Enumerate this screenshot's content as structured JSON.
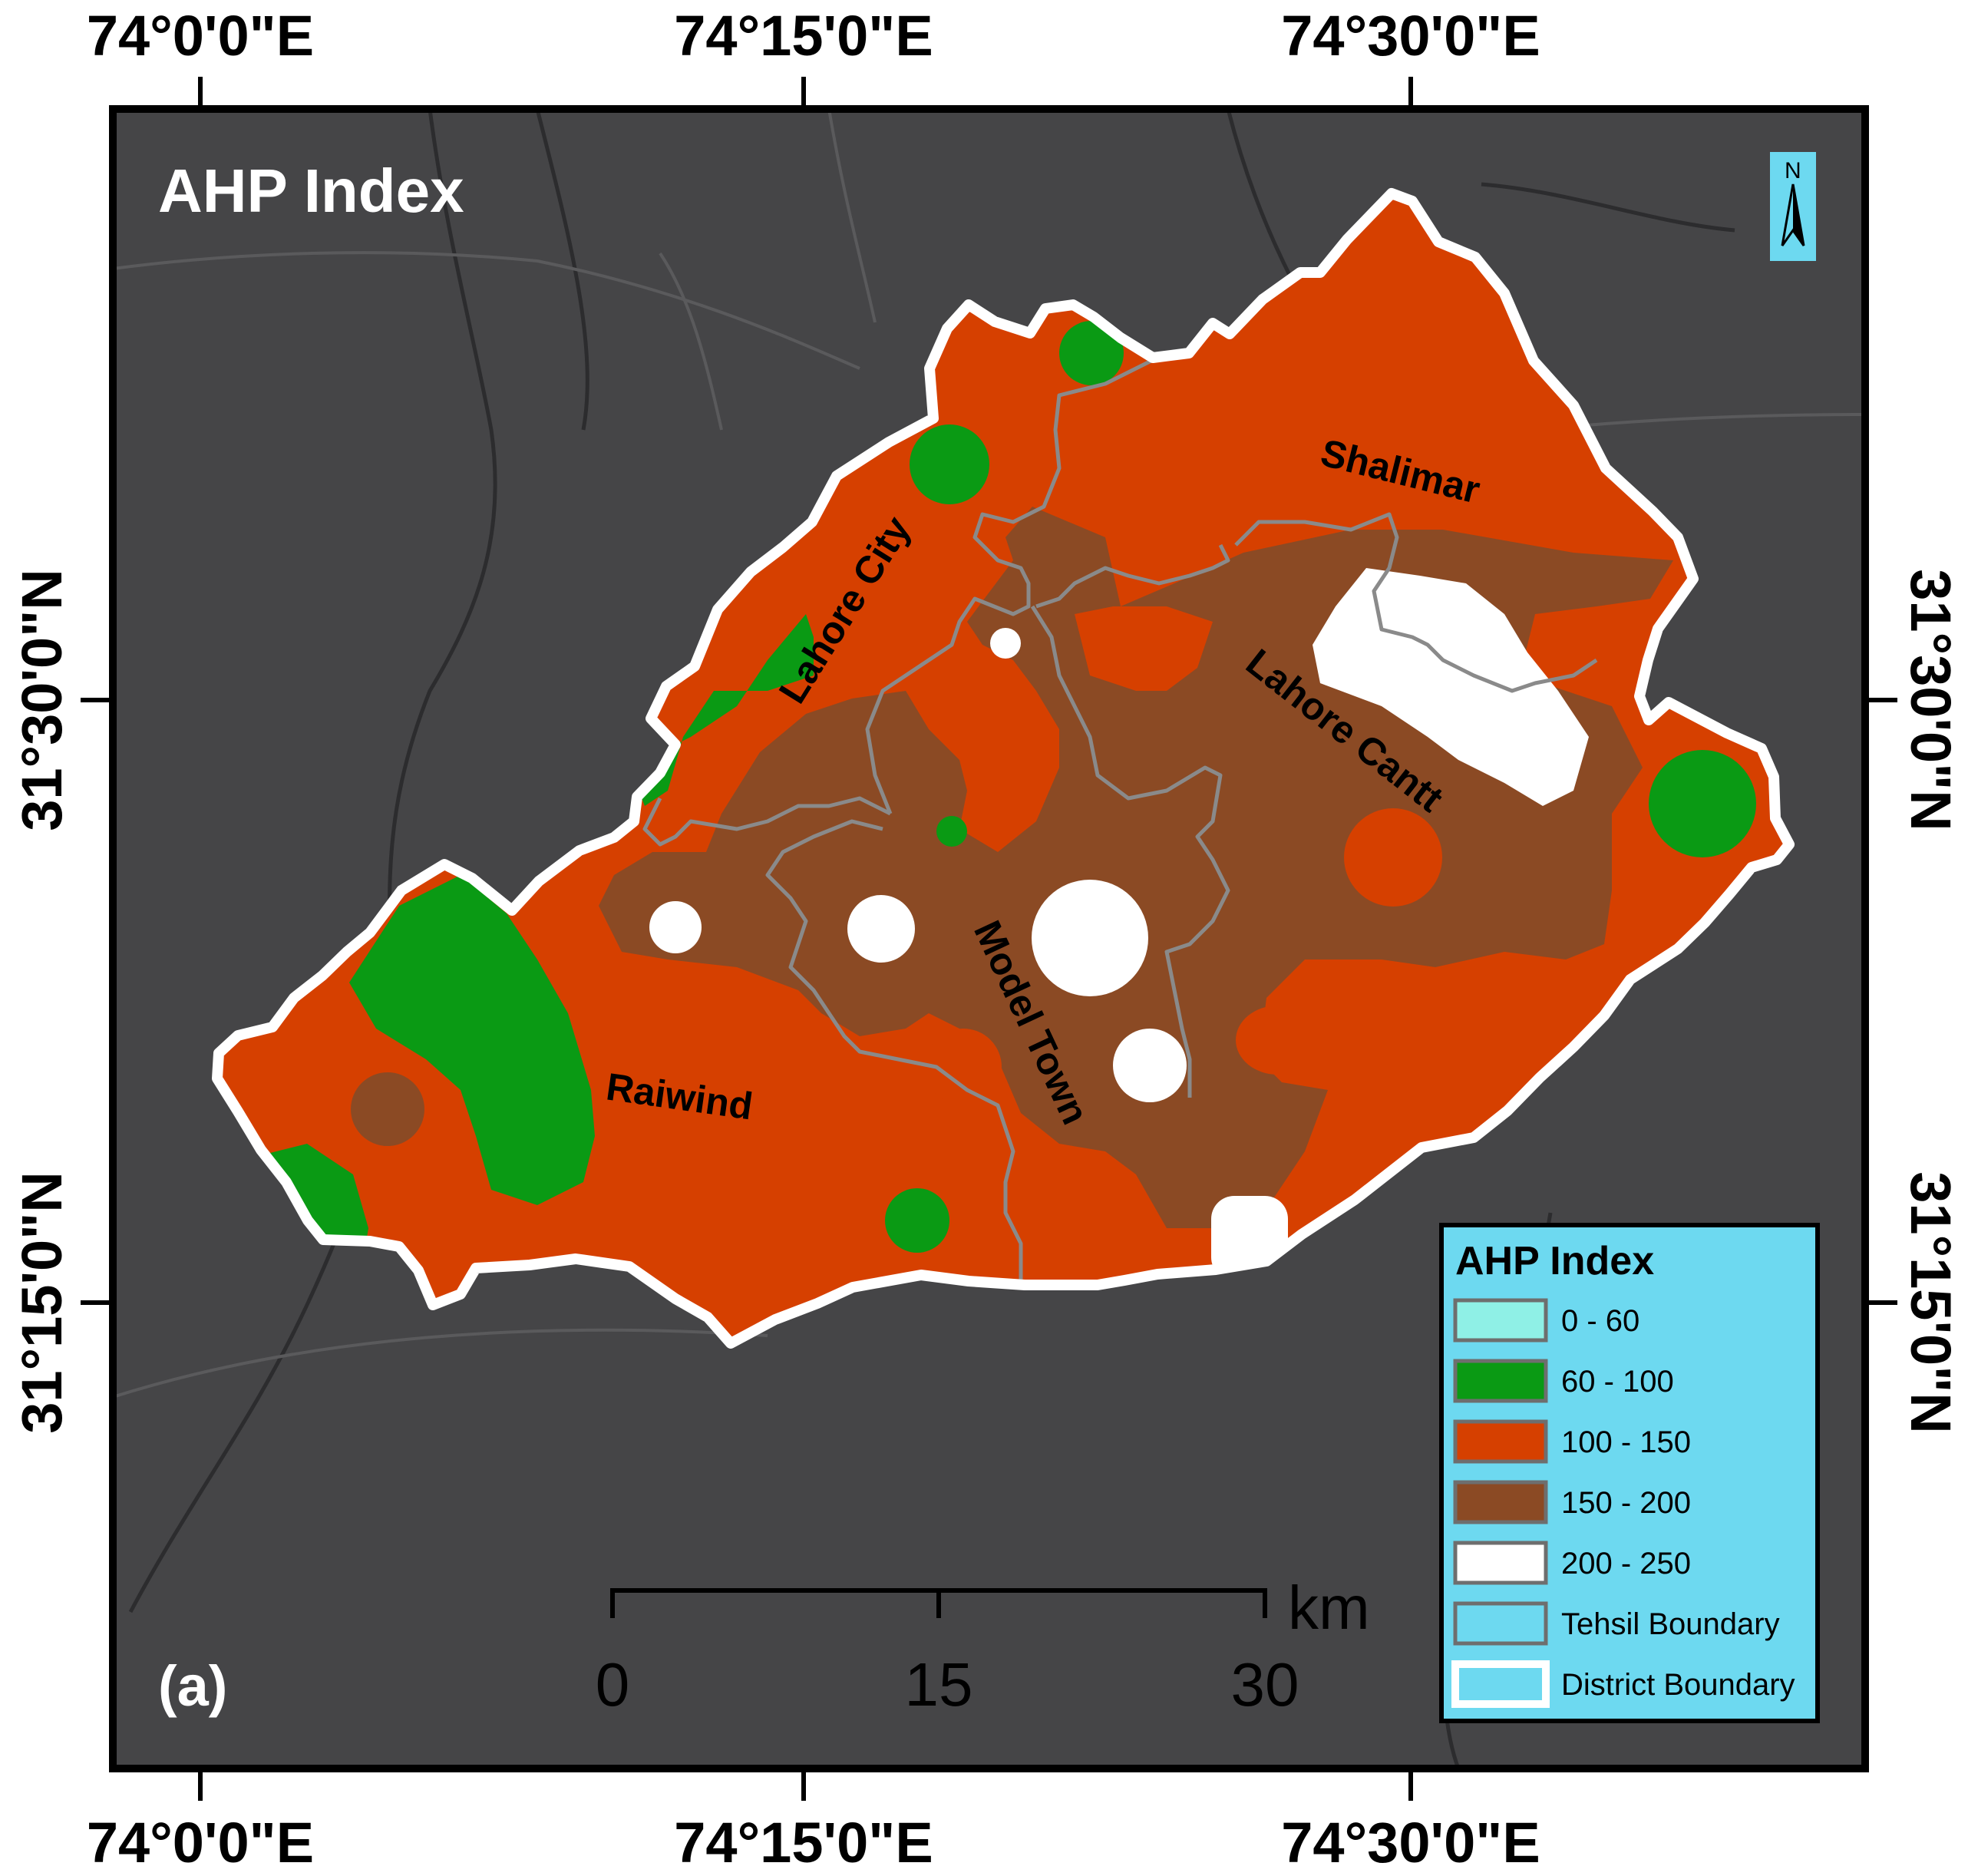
{
  "map": {
    "title": "AHP Index",
    "panel_label": "(a)",
    "colors": {
      "background": "#454547",
      "frame": "#000000",
      "district_boundary": "#ffffff",
      "tehsil_boundary": "#8a8a8a",
      "class_0_60": "#8ff0e6",
      "class_60_100": "#0a9a14",
      "class_100_150": "#d64000",
      "class_150_200": "#8b4a24",
      "class_200_250": "#ffffff",
      "legend_bg": "#6dd9f0"
    }
  },
  "graticule": {
    "top_labels": [
      "74°0'0\"E",
      "74°15'0\"E",
      "74°30'0\"E"
    ],
    "bottom_labels": [
      "74°0'0\"E",
      "74°15'0\"E",
      "74°30'0\"E"
    ],
    "left_labels": [
      "31°30'0\"N",
      "31°15'0\"N"
    ],
    "right_labels": [
      "31°30'0\"N",
      "31°15'0\"N"
    ]
  },
  "tehsils": {
    "lahore_city": "Lahore City",
    "shalimar": "Shalimar",
    "lahore_cantt": "Lahore Cantt",
    "model_town": "Model Town",
    "raiwind": "Raiwind"
  },
  "scale_bar": {
    "unit": "km",
    "labels": [
      "0",
      "15",
      "30"
    ]
  },
  "north_arrow": {
    "letter": "N",
    "icon": "north-arrow-icon"
  },
  "legend": {
    "title": "AHP Index",
    "items": [
      {
        "label": "0 - 60",
        "color": "#8ff0e6"
      },
      {
        "label": "60 - 100",
        "color": "#0a9a14"
      },
      {
        "label": "100 - 150",
        "color": "#d64000"
      },
      {
        "label": "150 - 200",
        "color": "#8b4a24"
      },
      {
        "label": "200 - 250",
        "color": "#ffffff"
      },
      {
        "label": "Tehsil Boundary",
        "color": "#6dd9f0"
      },
      {
        "label": "District Boundary",
        "color": "#6dd9f0"
      }
    ]
  }
}
